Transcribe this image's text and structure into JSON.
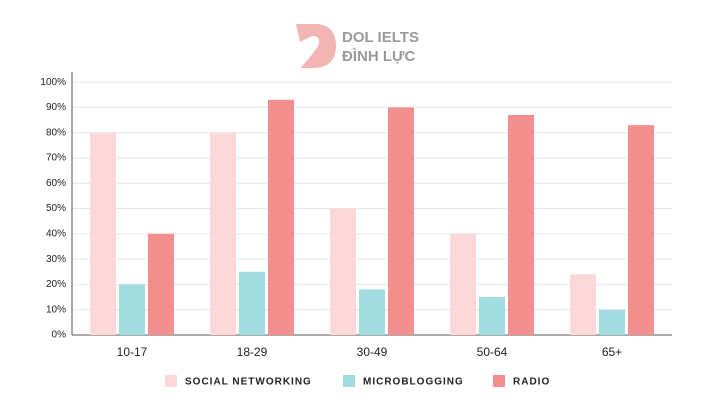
{
  "logo": {
    "line1": "DOL IELTS",
    "line2": "ĐÌNH LỰC"
  },
  "chart_data": {
    "type": "bar",
    "categories": [
      "10-17",
      "18-29",
      "30-49",
      "50-64",
      "65+"
    ],
    "series": [
      {
        "name": "SOCIAL NETWORKING",
        "color": "#fcd9d8",
        "values": [
          80,
          80,
          50,
          40,
          24
        ]
      },
      {
        "name": "MICROBLOGGING",
        "color": "#a1dcdf",
        "values": [
          20,
          25,
          18,
          15,
          10
        ]
      },
      {
        "name": "RADIO",
        "color": "#f28e8e",
        "values": [
          40,
          93,
          90,
          87,
          83
        ]
      }
    ],
    "ylim": [
      0,
      104
    ],
    "yticks": [
      {
        "value": 0,
        "label": "0%"
      },
      {
        "value": 10,
        "label": "10%"
      },
      {
        "value": 20,
        "label": "20%"
      },
      {
        "value": 30,
        "label": "30%"
      },
      {
        "value": 40,
        "label": "40%"
      },
      {
        "value": 50,
        "label": "50%"
      },
      {
        "value": 60,
        "label": "60%"
      },
      {
        "value": 70,
        "label": "70%"
      },
      {
        "value": 80,
        "label": "80%"
      },
      {
        "value": 90,
        "label": "90%"
      },
      {
        "value": 100,
        "label": "100%"
      }
    ],
    "grid": true,
    "legend": "bottom"
  }
}
